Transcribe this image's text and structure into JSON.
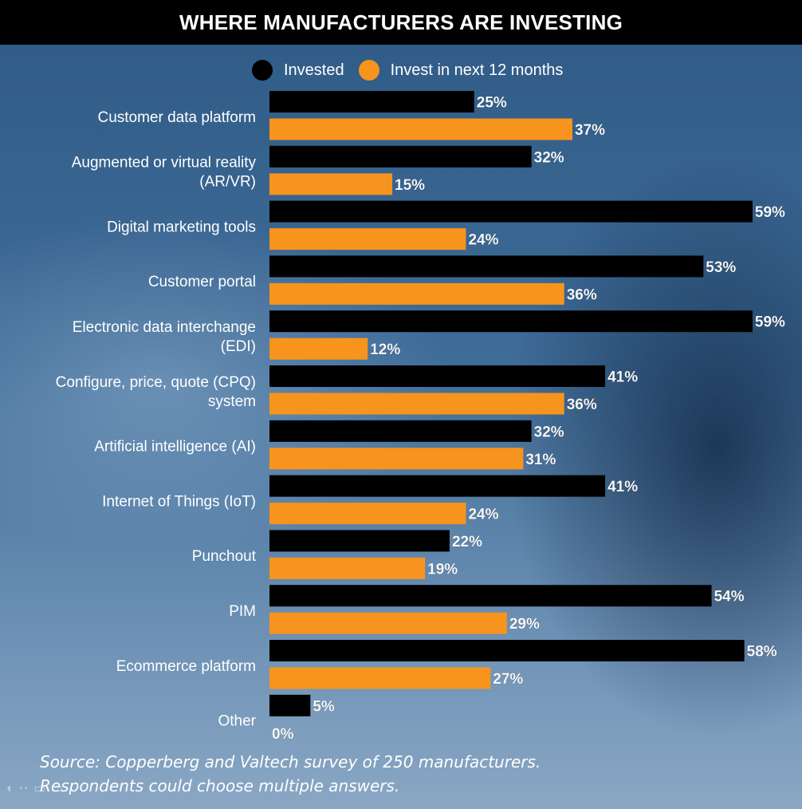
{
  "title": "WHERE MANUFACTURERS ARE INVESTING",
  "source_line1": "Source: Copperberg and Valtech survey of 250 manufacturers.",
  "source_line2": "Respondents could choose multiple answers.",
  "chart_data": {
    "type": "bar",
    "orientation": "horizontal",
    "categories": [
      "Customer data platform",
      "Augmented or virtual reality (AR/VR)",
      "Digital marketing tools",
      "Customer portal",
      "Electronic data interchange (EDI)",
      "Configure, price, quote (CPQ) system",
      "Artificial intelligence (AI)",
      "Internet of Things (IoT)",
      "Punchout",
      "PIM",
      "Ecommerce platform",
      "Other"
    ],
    "series": [
      {
        "name": "Invested",
        "color": "#000000",
        "values": [
          25,
          32,
          59,
          53,
          59,
          41,
          32,
          41,
          22,
          54,
          58,
          5
        ]
      },
      {
        "name": "Invest in next 12 months",
        "color": "#f7941d",
        "values": [
          37,
          15,
          24,
          36,
          12,
          36,
          31,
          24,
          19,
          29,
          27,
          0
        ]
      }
    ],
    "value_suffix": "%",
    "xlim": [
      0,
      59
    ],
    "legend": "top"
  }
}
